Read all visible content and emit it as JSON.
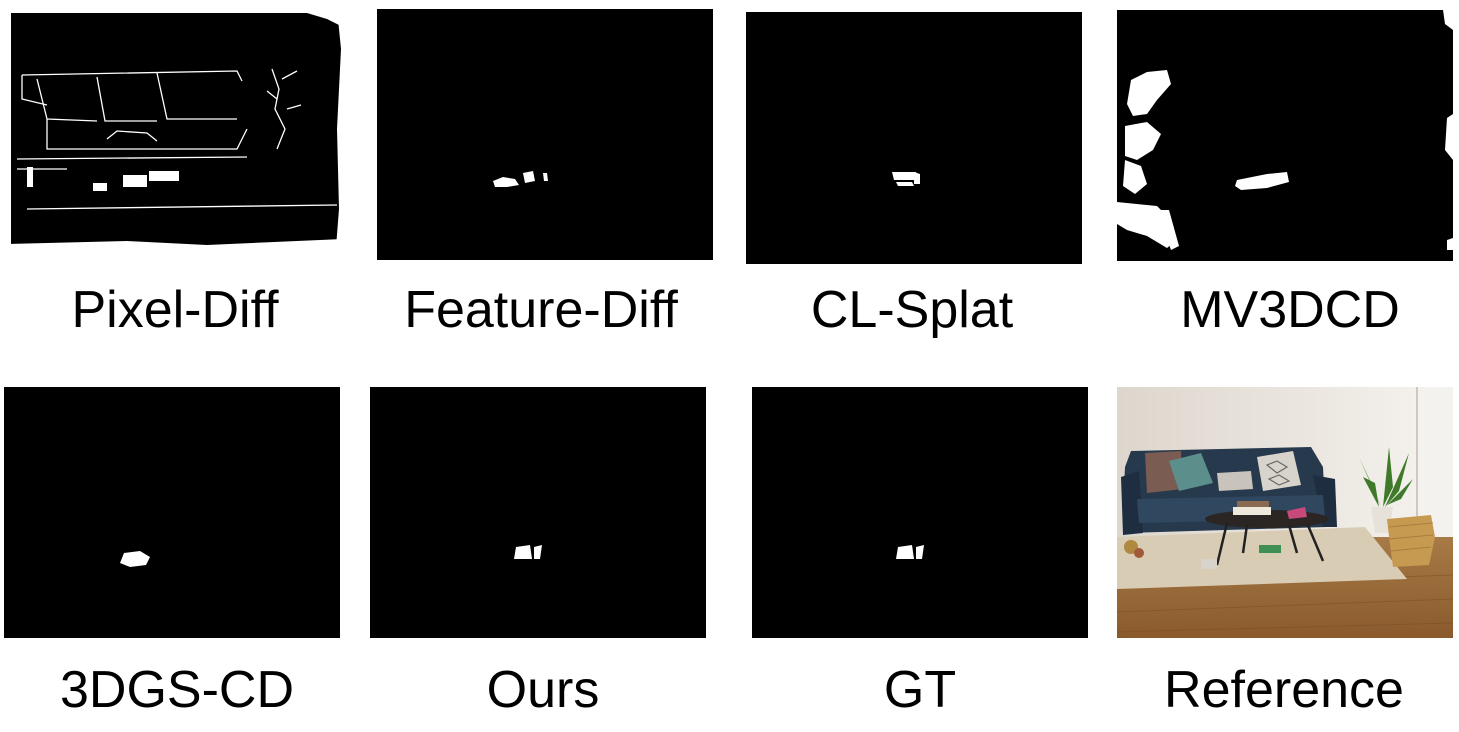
{
  "figure": {
    "panels": [
      {
        "label": "Pixel-Diff",
        "kind": "mask"
      },
      {
        "label": "Feature-Diff",
        "kind": "mask"
      },
      {
        "label": "CL-Splat",
        "kind": "mask"
      },
      {
        "label": "MV3DCD",
        "kind": "mask"
      },
      {
        "label": "3DGS-CD",
        "kind": "mask"
      },
      {
        "label": "Ours",
        "kind": "mask"
      },
      {
        "label": "GT",
        "kind": "mask"
      },
      {
        "label": "Reference",
        "kind": "photo"
      }
    ]
  }
}
